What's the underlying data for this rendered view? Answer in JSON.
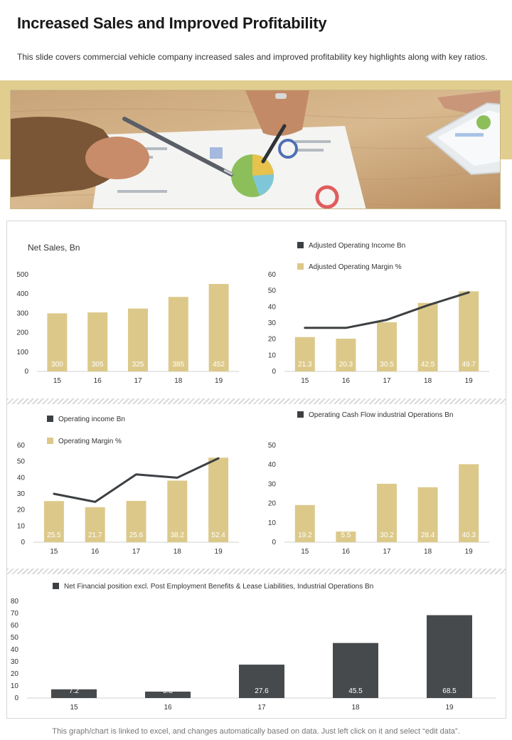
{
  "header": {
    "title": "Increased Sales and Improved Profitability",
    "subtitle": "This slide covers commercial vehicle company increased sales and improved  profitability key highlights along with key ratios."
  },
  "colors": {
    "bar_gold": "#dcc98a",
    "bar_dark": "#474a4c",
    "line_dark": "#3d4043",
    "band": "#e1cd8e"
  },
  "footer": {
    "note": "This graph/chart is linked to excel,  and changes automatically based on data. Just left click on it and select “edit data”."
  },
  "chart_data": [
    {
      "id": "net_sales",
      "type": "bar",
      "title": "Net Sales, Bn",
      "categories": [
        "15",
        "16",
        "17",
        "18",
        "19"
      ],
      "series": [
        {
          "values": [
            300,
            305,
            325,
            385,
            452
          ]
        }
      ],
      "yticks": [
        0,
        100,
        200,
        300,
        400,
        500
      ],
      "ylim": [
        0,
        500
      ],
      "grid": false
    },
    {
      "id": "adjusted_operating",
      "type": "bar",
      "categories": [
        "15",
        "16",
        "17",
        "18",
        "19"
      ],
      "series": [
        {
          "name": "Adjusted Operating Margin %",
          "type": "bar",
          "values": [
            21.3,
            20.3,
            30.5,
            42.5,
            49.7
          ]
        },
        {
          "name": "Adjusted Operating Income Bn",
          "type": "line",
          "values": [
            27,
            27,
            32,
            41,
            49
          ]
        }
      ],
      "legend_order": [
        "Adjusted Operating Income Bn",
        "Adjusted Operating Margin %"
      ],
      "legend": "top",
      "yticks": [
        0,
        10,
        20,
        30,
        40,
        50,
        60
      ],
      "ylim": [
        0,
        60
      ],
      "grid": false
    },
    {
      "id": "operating_income",
      "type": "bar",
      "categories": [
        "15",
        "16",
        "17",
        "18",
        "19"
      ],
      "series": [
        {
          "name": "Operating Margin %",
          "type": "bar",
          "values": [
            25.5,
            21.7,
            25.6,
            38.2,
            52.4
          ]
        },
        {
          "name": "Operating income Bn",
          "type": "line",
          "values": [
            30,
            25,
            42,
            40,
            52
          ]
        }
      ],
      "legend_order": [
        "Operating income Bn",
        "Operating Margin %"
      ],
      "legend": "top-left",
      "yticks": [
        0,
        10,
        20,
        30,
        40,
        50,
        60
      ],
      "ylim": [
        0,
        60
      ],
      "grid": false
    },
    {
      "id": "operating_cash_flow",
      "type": "bar",
      "categories": [
        "15",
        "16",
        "17",
        "18",
        "19"
      ],
      "series": [
        {
          "name": "Operating Cash Flow industrial Operations Bn",
          "type": "bar",
          "values": [
            19.2,
            5.5,
            30.2,
            28.4,
            40.3
          ]
        }
      ],
      "legend_order": [
        "Operating Cash Flow industrial Operations Bn"
      ],
      "legend": "top",
      "yticks": [
        0,
        10,
        20,
        30,
        40,
        50
      ],
      "ylim": [
        0,
        50
      ],
      "grid": false
    },
    {
      "id": "net_financial",
      "type": "bar",
      "categories": [
        "15",
        "16",
        "17",
        "18",
        "19"
      ],
      "series": [
        {
          "name": "Net Financial position excl. Post Employment  Benefits & Lease Liabilities,  Industrial Operations Bn",
          "type": "bar",
          "values": [
            7.2,
            5.3,
            27.6,
            45.5,
            68.5
          ]
        }
      ],
      "legend_order": [
        "Net Financial position excl. Post Employment  Benefits & Lease Liabilities,  Industrial Operations Bn"
      ],
      "legend": "top",
      "yticks": [
        0,
        10,
        20,
        30,
        40,
        50,
        60,
        70,
        80
      ],
      "ylim": [
        0,
        80
      ],
      "grid": false
    }
  ]
}
